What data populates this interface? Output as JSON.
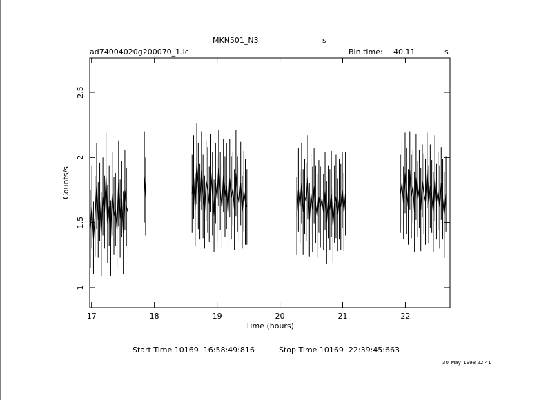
{
  "chart_data": {
    "type": "errorbar",
    "title": "MKN501_N3",
    "title_unit": "s",
    "file_name": "ad74004020g200070_1.lc",
    "bin_time_label": "Bin time:",
    "bin_time": "40.11",
    "bin_time_unit": "s",
    "ylabel": "Counts/s",
    "xlabel": "Time (hours)",
    "start_time": "Start Time 10169  16:58:49:816",
    "stop_time": "Stop Time 10169  22:39:45:663",
    "date_stamp": "30–May–1998 22:41",
    "color": "#000000",
    "xlim": [
      16.97,
      22.71
    ],
    "xticks": [
      17,
      18,
      19,
      20,
      21,
      22
    ],
    "ylim": [
      0.846,
      2.765
    ],
    "yticks": [
      1,
      1.5,
      2,
      2.5
    ],
    "x": [
      16.98,
      17.005,
      17.03,
      17.055,
      17.08,
      17.105,
      17.13,
      17.155,
      17.18,
      17.205,
      17.23,
      17.255,
      17.28,
      17.305,
      17.33,
      17.355,
      17.38,
      17.405,
      17.43,
      17.455,
      17.48,
      17.505,
      17.53,
      17.555,
      17.58,
      17.7,
      17.84,
      17.86,
      18.2,
      18.6,
      18.625,
      18.65,
      18.675,
      18.7,
      18.725,
      18.75,
      18.775,
      18.8,
      18.825,
      18.85,
      18.875,
      18.9,
      18.925,
      18.95,
      18.975,
      19,
      19.025,
      19.05,
      19.075,
      19.1,
      19.125,
      19.15,
      19.175,
      19.2,
      19.225,
      19.25,
      19.275,
      19.3,
      19.325,
      19.35,
      19.375,
      19.4,
      19.425,
      19.45,
      19.475,
      19.9,
      20.27,
      20.295,
      20.32,
      20.345,
      20.37,
      20.395,
      20.42,
      20.445,
      20.47,
      20.495,
      20.52,
      20.545,
      20.57,
      20.595,
      20.62,
      20.645,
      20.67,
      20.695,
      20.72,
      20.745,
      20.77,
      20.795,
      20.82,
      20.845,
      20.87,
      20.895,
      20.92,
      20.945,
      20.97,
      20.995,
      21.02,
      21.045,
      21.5,
      21.92,
      21.945,
      21.97,
      21.995,
      22.02,
      22.045,
      22.07,
      22.095,
      22.12,
      22.145,
      22.17,
      22.195,
      22.22,
      22.245,
      22.27,
      22.295,
      22.32,
      22.345,
      22.37,
      22.395,
      22.42,
      22.445,
      22.47,
      22.495,
      22.52,
      22.545,
      22.57,
      22.595,
      22.62,
      22.645
    ],
    "values": [
      1.45,
      1.62,
      1.38,
      1.55,
      1.78,
      1.52,
      1.66,
      1.41,
      1.7,
      1.58,
      1.85,
      1.49,
      1.63,
      1.38,
      1.72,
      1.55,
      1.6,
      1.45,
      1.8,
      1.53,
      1.68,
      1.42,
      1.75,
      1.62,
      1.58,
      null,
      1.85,
      1.7,
      null,
      1.72,
      1.85,
      1.6,
      1.95,
      1.78,
      1.66,
      1.9,
      1.7,
      1.58,
      1.82,
      1.75,
      1.64,
      1.88,
      1.72,
      1.55,
      1.8,
      1.68,
      1.92,
      1.74,
      1.62,
      1.86,
      1.7,
      1.78,
      1.58,
      1.84,
      1.69,
      1.76,
      1.6,
      1.88,
      1.72,
      1.65,
      1.8,
      1.58,
      1.74,
      1.66,
      1.62,
      null,
      1.55,
      1.75,
      1.62,
      1.8,
      1.58,
      1.7,
      1.66,
      1.85,
      1.52,
      1.72,
      1.6,
      1.78,
      1.64,
      1.55,
      1.7,
      1.62,
      1.68,
      1.58,
      1.74,
      1.5,
      1.66,
      1.6,
      1.72,
      1.48,
      1.64,
      1.7,
      1.56,
      1.68,
      1.62,
      1.75,
      1.58,
      1.72,
      null,
      1.72,
      1.8,
      1.65,
      1.88,
      1.74,
      1.62,
      1.9,
      1.7,
      1.78,
      1.58,
      1.85,
      1.68,
      1.76,
      1.6,
      1.82,
      1.72,
      1.66,
      1.9,
      1.64,
      1.78,
      1.7,
      1.58,
      1.84,
      1.66,
      1.74,
      1.62,
      1.8,
      1.68,
      1.56,
      1.72
    ],
    "errors": [
      0.3,
      0.32,
      0.28,
      0.31,
      0.33,
      0.29,
      0.3,
      0.32,
      0.3,
      0.28,
      0.34,
      0.3,
      0.31,
      0.29,
      0.32,
      0.3,
      0.28,
      0.31,
      0.33,
      0.3,
      0.29,
      0.32,
      0.31,
      0.3,
      0.35,
      null,
      0.35,
      0.3,
      null,
      0.3,
      0.32,
      0.28,
      0.31,
      0.33,
      0.29,
      0.3,
      0.32,
      0.28,
      0.31,
      0.33,
      0.29,
      0.3,
      0.32,
      0.28,
      0.31,
      0.33,
      0.29,
      0.3,
      0.32,
      0.28,
      0.31,
      0.33,
      0.29,
      0.3,
      0.32,
      0.28,
      0.31,
      0.33,
      0.29,
      0.3,
      0.32,
      0.28,
      0.31,
      0.33,
      0.29,
      null,
      0.3,
      0.32,
      0.28,
      0.31,
      0.33,
      0.29,
      0.3,
      0.32,
      0.28,
      0.31,
      0.33,
      0.29,
      0.3,
      0.32,
      0.28,
      0.31,
      0.33,
      0.29,
      0.3,
      0.32,
      0.28,
      0.31,
      0.33,
      0.29,
      0.3,
      0.32,
      0.28,
      0.31,
      0.33,
      0.29,
      0.3,
      0.32,
      null,
      0.3,
      0.32,
      0.28,
      0.31,
      0.33,
      0.29,
      0.3,
      0.32,
      0.28,
      0.31,
      0.33,
      0.29,
      0.3,
      0.32,
      0.28,
      0.31,
      0.33,
      0.29,
      0.3,
      0.32,
      0.28,
      0.31,
      0.33,
      0.29,
      0.3,
      0.32,
      0.28,
      0.31,
      0.33,
      0.29
    ]
  }
}
